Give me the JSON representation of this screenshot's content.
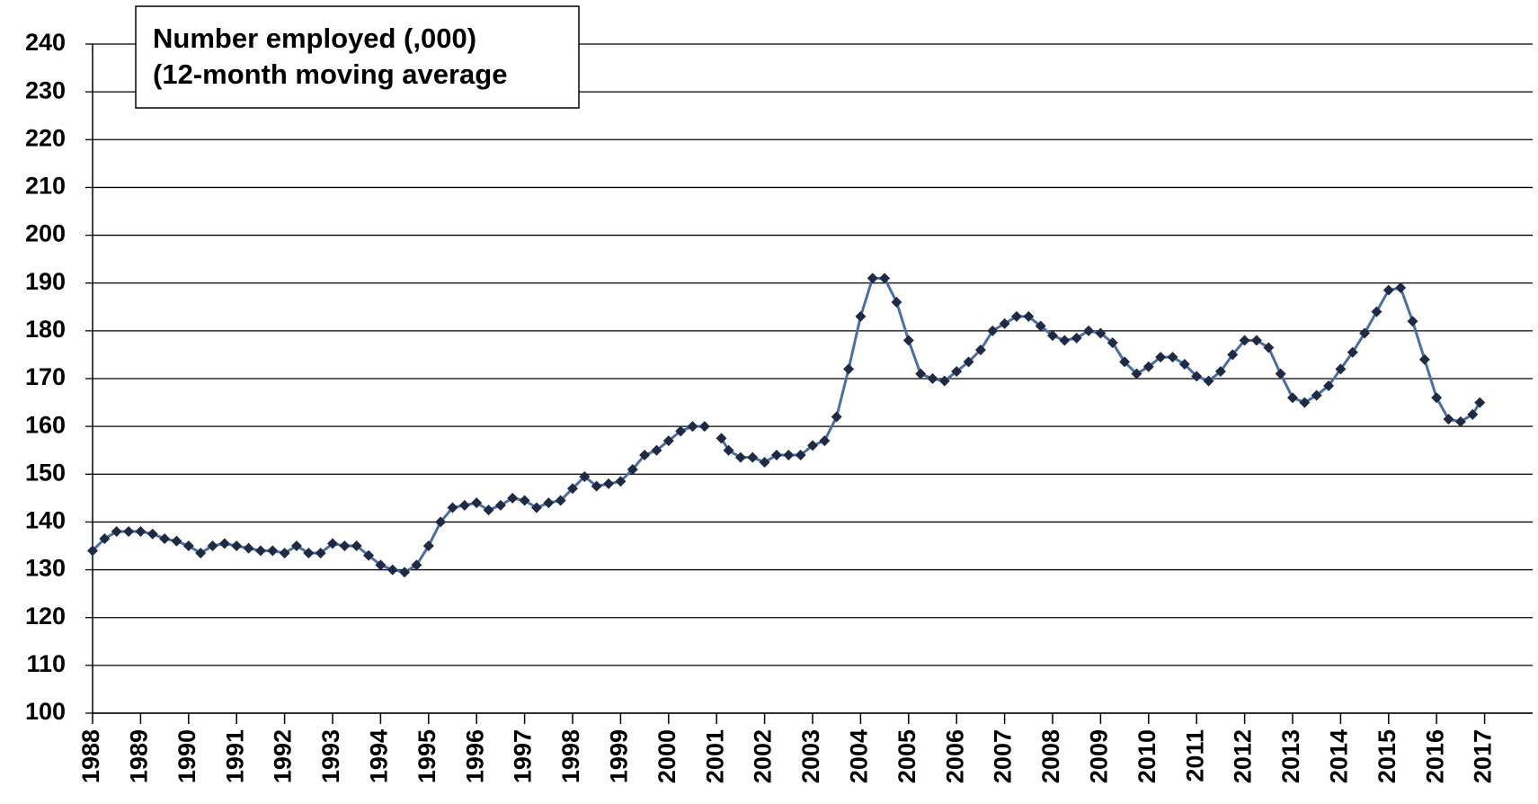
{
  "chart_data": {
    "type": "line",
    "title": "Number employed (,000)",
    "subtitle": "(12-month moving average",
    "x": [
      1988,
      1988.25,
      1988.5,
      1988.75,
      1989,
      1989.25,
      1989.5,
      1989.75,
      1990,
      1990.25,
      1990.5,
      1990.75,
      1991,
      1991.25,
      1991.5,
      1991.75,
      1992,
      1992.25,
      1992.5,
      1992.75,
      1993,
      1993.25,
      1993.5,
      1993.75,
      1994,
      1994.25,
      1994.5,
      1994.75,
      1995,
      1995.25,
      1995.5,
      1995.75,
      1996,
      1996.25,
      1996.5,
      1996.75,
      1997,
      1997.25,
      1997.5,
      1997.75,
      1998,
      1998.25,
      1998.5,
      1998.75,
      1999,
      1999.25,
      1999.5,
      1999.75,
      2000,
      2000.25,
      2000.5,
      2000.75,
      2001,
      2001.1,
      2001.25,
      2001.5,
      2001.75,
      2002,
      2002.25,
      2002.5,
      2002.75,
      2003,
      2003.25,
      2003.5,
      2003.75,
      2004,
      2004.25,
      2004.5,
      2004.75,
      2005,
      2005.25,
      2005.5,
      2005.75,
      2006,
      2006.25,
      2006.5,
      2006.75,
      2007,
      2007.25,
      2007.5,
      2007.75,
      2008,
      2008.25,
      2008.5,
      2008.75,
      2009,
      2009.25,
      2009.5,
      2009.75,
      2010,
      2010.25,
      2010.5,
      2010.75,
      2011,
      2011.25,
      2011.5,
      2011.75,
      2012,
      2012.25,
      2012.5,
      2012.75,
      2013,
      2013.25,
      2013.5,
      2013.75,
      2014,
      2014.25,
      2014.5,
      2014.75,
      2015,
      2015.25,
      2015.5,
      2015.75,
      2016,
      2016.25,
      2016.5,
      2016.75,
      2016.9
    ],
    "series": [
      {
        "name": "Number employed",
        "color": "#1f2a44",
        "values": [
          134,
          136.5,
          138,
          138,
          138,
          137.5,
          136.5,
          136,
          135,
          133.5,
          135,
          135.5,
          135,
          134.5,
          134,
          134,
          133.5,
          135,
          133.5,
          133.5,
          135.5,
          135,
          135,
          133,
          131,
          130,
          129.5,
          131,
          135,
          140,
          143,
          143.5,
          144,
          142.5,
          143.5,
          145,
          144.5,
          143,
          144,
          144.5,
          147,
          149.5,
          147.5,
          148,
          148.5,
          151,
          154,
          155,
          157,
          159,
          160,
          160,
          null,
          157.5,
          155,
          153.5,
          153.5,
          152.5,
          154,
          154,
          154,
          156,
          157,
          162,
          172,
          183,
          191,
          191,
          186,
          178,
          171,
          170,
          169.5,
          171.5,
          173.5,
          176,
          180,
          181.5,
          183,
          183,
          181,
          179,
          178,
          178.5,
          180,
          179.5,
          177.5,
          173.5,
          171,
          172.5,
          174.5,
          174.5,
          173,
          170.5,
          169.5,
          171.5,
          175,
          178,
          178,
          176.5,
          171,
          166,
          165,
          166.5,
          168.5,
          172,
          175.5,
          179.5,
          184,
          188.5,
          189,
          182,
          174,
          166,
          161.5,
          161,
          162.5,
          165
        ]
      }
    ],
    "xlim": [
      1988,
      2018
    ],
    "xticks": [
      1988,
      1989,
      1990,
      1991,
      1992,
      1993,
      1994,
      1995,
      1996,
      1997,
      1998,
      1999,
      2000,
      2001,
      2002,
      2003,
      2004,
      2005,
      2006,
      2007,
      2008,
      2009,
      2010,
      2011,
      2012,
      2013,
      2014,
      2015,
      2016,
      2017
    ],
    "ylim": [
      100,
      240
    ],
    "yticks": [
      100,
      110,
      120,
      130,
      140,
      150,
      160,
      170,
      180,
      190,
      200,
      210,
      220,
      230,
      240
    ],
    "grid": true
  }
}
